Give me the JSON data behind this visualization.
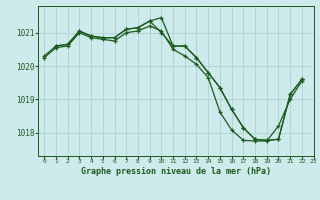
{
  "title": "Graphe pression niveau de la mer (hPa)",
  "bg_color": "#ceeaec",
  "line_color": "#1a5c1a",
  "grid_color": "#a8cccf",
  "xlim": [
    -0.5,
    23
  ],
  "ylim": [
    1017.3,
    1021.8
  ],
  "yticks": [
    1018,
    1019,
    1020,
    1021
  ],
  "xticks": [
    0,
    1,
    2,
    3,
    4,
    5,
    6,
    7,
    8,
    9,
    10,
    11,
    12,
    13,
    14,
    15,
    16,
    17,
    18,
    19,
    20,
    21,
    22,
    23
  ],
  "line1_x": [
    0,
    1,
    2,
    3,
    4,
    5,
    6,
    7,
    8,
    9,
    10,
    11,
    12,
    13,
    14,
    15,
    16,
    17,
    18,
    19,
    20,
    21,
    22
  ],
  "line1_y": [
    1020.3,
    1020.6,
    1020.65,
    1021.05,
    1020.9,
    1020.85,
    1020.85,
    1021.1,
    1021.15,
    1021.35,
    1021.45,
    1020.6,
    1020.6,
    1020.25,
    1019.8,
    1019.35,
    1018.7,
    1018.15,
    1017.8,
    1017.77,
    1017.8,
    1019.15,
    1019.6
  ],
  "line2_x": [
    1,
    2,
    3,
    4,
    5,
    6,
    7,
    8,
    9,
    10,
    11,
    12,
    13,
    14,
    15,
    16,
    17,
    18,
    19,
    20,
    21,
    22
  ],
  "line2_y": [
    1020.6,
    1020.65,
    1021.05,
    1020.9,
    1020.85,
    1020.85,
    1021.1,
    1021.15,
    1021.35,
    1021.0,
    1020.6,
    1020.6,
    1020.25,
    1019.8,
    1019.35,
    1018.7,
    1018.15,
    1017.8,
    1017.77,
    1017.8,
    1019.15,
    1019.6
  ],
  "line3_x": [
    0,
    1,
    2,
    3,
    4,
    5,
    6,
    7,
    8,
    9,
    10,
    11,
    12,
    13,
    14,
    15,
    16,
    17,
    18,
    19,
    20,
    21,
    22
  ],
  "line3_y": [
    1020.25,
    1020.55,
    1020.6,
    1021.0,
    1020.85,
    1020.8,
    1020.75,
    1021.0,
    1021.05,
    1021.2,
    1021.05,
    1020.5,
    1020.3,
    1020.05,
    1019.65,
    1018.62,
    1018.08,
    1017.77,
    1017.75,
    1017.75,
    1018.2,
    1019.0,
    1019.55
  ]
}
